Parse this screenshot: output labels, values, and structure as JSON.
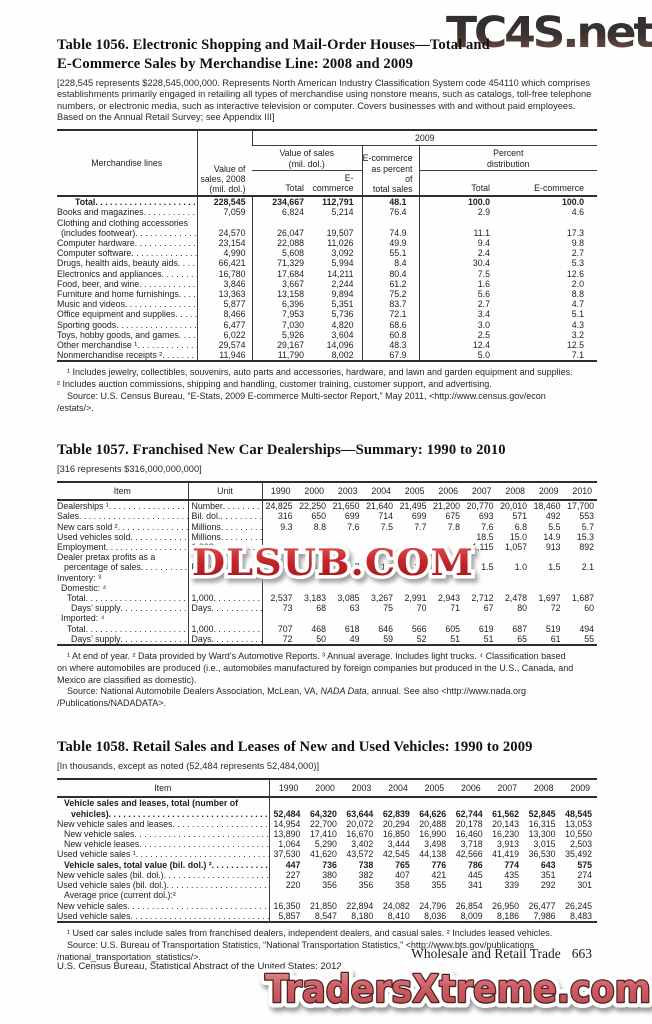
{
  "watermarks": {
    "top": "TC4S.net",
    "middle": "DLSUB.COM",
    "bottom": "TradersXtreme.com"
  },
  "page": {
    "footer_left": "U.S. Census Bureau, Statistical Abstract of the United States: 2012",
    "running_head": "Wholesale and Retail Trade",
    "page_number": "663"
  },
  "table1056": {
    "title_line1": "Table 1056. Electronic Shopping and Mail-Order Houses—Total and",
    "title_line2": "E-Commerce Sales by Merchandise Line: 2008 and 2009",
    "note": "[228,545 represents $228,545,000,000. Represents North American Industry Classification System code 454110 which comprises establishments primarily engaged in retailing all types of merchandise using nonstore means, such as catalogs, toll-free telephone numbers, or electronic media, such as interactive television or computer. Covers businesses with and without paid employees. Based on the Annual Retail Survey; see Appendix III]",
    "header": {
      "stub": "Merchandise lines",
      "col_2008_line1": "Value of",
      "col_2008_line2": "sales, 2008",
      "col_2008_line3": "(mil. dol.)",
      "group_2009": "2009",
      "vos_line1": "Value of sales",
      "vos_line2": "(mil. dol.)",
      "ecp_line1": "E-commerce",
      "ecp_line2": "as percent of",
      "ecp_line3": "total sales",
      "pd_line1": "Percent",
      "pd_line2": "distribution",
      "sub_total": "Total",
      "sub_ecommerce": "E-commerce"
    },
    "rows": [
      {
        "label": "Total",
        "bold": true,
        "indent": 5,
        "values": [
          "228,545",
          "234,667",
          "112,791",
          "48.1",
          "100.0",
          "100.0"
        ]
      },
      {
        "label": "Books and magazines",
        "values": [
          "7,059",
          "6,824",
          "5,214",
          "76.4",
          "2.9",
          "4.6"
        ]
      },
      {
        "label": "Clothing and clothing accessories",
        "values": null
      },
      {
        "label": "(includes footwear)",
        "indent": 1,
        "values": [
          "24,570",
          "26,047",
          "19,507",
          "74.9",
          "11.1",
          "17.3"
        ]
      },
      {
        "label": "Computer hardware",
        "values": [
          "23,154",
          "22,088",
          "11,026",
          "49.9",
          "9.4",
          "9.8"
        ]
      },
      {
        "label": "Computer software",
        "values": [
          "4,990",
          "5,608",
          "3,092",
          "55.1",
          "2.4",
          "2.7"
        ]
      },
      {
        "label": "Drugs, health aids, beauty aids",
        "values": [
          "66,421",
          "71,329",
          "5,994",
          "8.4",
          "30.4",
          "5.3"
        ]
      },
      {
        "label": "Electronics and appliances",
        "values": [
          "16,780",
          "17,684",
          "14,211",
          "80.4",
          "7.5",
          "12.6"
        ]
      },
      {
        "label": "Food, beer, and wine",
        "values": [
          "3,846",
          "3,667",
          "2,244",
          "61.2",
          "1.6",
          "2.0"
        ]
      },
      {
        "label": "Furniture and home furnishings",
        "values": [
          "13,363",
          "13,158",
          "9,894",
          "75.2",
          "5.6",
          "8.8"
        ]
      },
      {
        "label": "Music and videos",
        "values": [
          "5,877",
          "6,396",
          "5,351",
          "83.7",
          "2.7",
          "4.7"
        ]
      },
      {
        "label": "Office equipment and supplies",
        "values": [
          "8,466",
          "7,953",
          "5,736",
          "72.1",
          "3.4",
          "5.1"
        ]
      },
      {
        "label": "Sporting goods",
        "values": [
          "6,477",
          "7,030",
          "4,820",
          "68.6",
          "3.0",
          "4.3"
        ]
      },
      {
        "label": "Toys, hobby goods, and games",
        "values": [
          "6,022",
          "5,926",
          "3,604",
          "60.8",
          "2.5",
          "3.2"
        ]
      },
      {
        "label": "Other merchandise ¹",
        "values": [
          "29,574",
          "29,167",
          "14,096",
          "48.3",
          "12.4",
          "12.5"
        ]
      },
      {
        "label": "Nonmerchandise receipts ²",
        "values": [
          "11,946",
          "11,790",
          "8,002",
          "67.9",
          "5.0",
          "7.1"
        ]
      }
    ],
    "footnote1": "¹ Includes jewelry, collectibles, souvenirs, auto parts and accessories, hardware, and lawn and garden equipment and supplies.",
    "footnote2": "² Includes auction commissions, shipping and handling, customer training, customer support, and advertising.",
    "source_line1": "Source: U.S. Census Bureau, “E-Stats, 2009 E-commerce Multi-sector Report,” May 2011, <http://www.census.gov/econ",
    "source_line2": "/estats/>."
  },
  "table1057": {
    "title": "Table 1057. Franchised New Car Dealerships—Summary: 1990 to 2010",
    "note": "[316 represents $316,000,000,000]",
    "header_item": "Item",
    "header_unit": "Unit",
    "years": [
      "1990",
      "2000",
      "2003",
      "2004",
      "2005",
      "2006",
      "2007",
      "2008",
      "2009",
      "2010"
    ],
    "rows": [
      {
        "label": "Dealerships ¹",
        "unit": "Number",
        "values": [
          "24,825",
          "22,250",
          "21,650",
          "21,640",
          "21,495",
          "21,200",
          "20,770",
          "20,010",
          "18,460",
          "17,700"
        ]
      },
      {
        "label": "Sales",
        "unit": "Bil. dol.",
        "values": [
          "316",
          "650",
          "699",
          "714",
          "699",
          "675",
          "693",
          "571",
          "492",
          "553"
        ]
      },
      {
        "label": "New cars sold ²",
        "unit": "Millions",
        "values": [
          "9.3",
          "8.8",
          "7.6",
          "7.5",
          "7.7",
          "7.8",
          "7.6",
          "6.8",
          "5.5",
          "5.7"
        ]
      },
      {
        "label": "Used vehicles sold",
        "unit": "Millions",
        "values": [
          "",
          "",
          "",
          "",
          "",
          "",
          "18.5",
          "15.0",
          "14.9",
          "15.3"
        ]
      },
      {
        "label": "Employment",
        "unit": "1,000",
        "values": [
          "",
          "",
          "",
          "",
          "",
          "",
          "1,115",
          "1,057",
          "913",
          "892"
        ]
      },
      {
        "label": "Dealer pretax profits as a",
        "values": null
      },
      {
        "label": "percentage of sales",
        "indent": 2,
        "unit": "Percent",
        "values": [
          "1.0",
          "1.6",
          "1.7",
          "1.7",
          "1.6",
          "1.5",
          "1.5",
          "1.0",
          "1.5",
          "2.1"
        ]
      },
      {
        "label": "Inventory: ³",
        "values": null
      },
      {
        "label": "Domestic: ⁴",
        "indent": 1,
        "values": null
      },
      {
        "label": "Total",
        "indent": 3,
        "unit": "1,000",
        "values": [
          "2,537",
          "3,183",
          "3,085",
          "3,267",
          "2,991",
          "2,943",
          "2,712",
          "2,478",
          "1,697",
          "1,687"
        ]
      },
      {
        "label": "Days’ supply",
        "indent": 4,
        "unit": "Days",
        "values": [
          "73",
          "68",
          "63",
          "75",
          "70",
          "71",
          "67",
          "80",
          "72",
          "60"
        ]
      },
      {
        "label": "Imported: ⁴",
        "indent": 1,
        "values": null
      },
      {
        "label": "Total",
        "indent": 3,
        "unit": "1,000",
        "values": [
          "707",
          "468",
          "618",
          "646",
          "566",
          "605",
          "619",
          "687",
          "519",
          "494"
        ]
      },
      {
        "label": "Days’ supply",
        "indent": 4,
        "unit": "Days",
        "values": [
          "72",
          "50",
          "49",
          "59",
          "52",
          "51",
          "51",
          "65",
          "61",
          "55"
        ]
      }
    ],
    "fn_line1": "¹ At end of year. ² Data provided by Ward’s Automotive Reports. ³ Annual average. Includes light trucks. ⁴ Classification based",
    "fn_line2": "on where automobiles are produced (i.e., automobiles manufactured by foreign companies but produced in the U.S., Canada, and",
    "fn_line3": "Mexico are classified as domestic).",
    "source_pre": "Source: National Automobile Dealers Association, McLean, VA, ",
    "source_italic": "NADA Data",
    "source_post": ", annual. See also <http://www.nada.org",
    "source_line2": "/Publications/NADADATA>."
  },
  "table1058": {
    "title": "Table 1058. Retail Sales and Leases of New and Used Vehicles: 1990 to 2009",
    "note": "[In thousands, except as noted (52,484 represents 52,484,000)]",
    "header_item": "Item",
    "years": [
      "1990",
      "2000",
      "2003",
      "2004",
      "2005",
      "2006",
      "2007",
      "2008",
      "2009"
    ],
    "rows": [
      {
        "label": "Vehicle sales and leases, total (number of",
        "bold": true,
        "indent": 2,
        "values": null
      },
      {
        "label": "vehicles)",
        "bold": true,
        "indent": 4,
        "values": [
          "52,484",
          "64,320",
          "63,644",
          "62,839",
          "64,626",
          "62,744",
          "61,562",
          "52,845",
          "48,545"
        ]
      },
      {
        "label": "New vehicle sales and leases",
        "values": [
          "14,954",
          "22,700",
          "20,072",
          "20,294",
          "20,488",
          "20,178",
          "20,143",
          "16,315",
          "13,053"
        ]
      },
      {
        "label": "New vehicle sales",
        "indent": 2,
        "values": [
          "13,890",
          "17,410",
          "16,670",
          "16,850",
          "16,990",
          "16,460",
          "16,230",
          "13,300",
          "10,550"
        ]
      },
      {
        "label": "New vehicle leases",
        "indent": 2,
        "values": [
          "1,064",
          "5,290",
          "3,402",
          "3,444",
          "3,498",
          "3,718",
          "3,913",
          "3,015",
          "2,503"
        ]
      },
      {
        "label": "Used vehicle sales ¹",
        "values": [
          "37,530",
          "41,620",
          "43,572",
          "42,545",
          "44,138",
          "42,566",
          "41,419",
          "36,530",
          "35,492"
        ]
      },
      {
        "label": "Vehicle sales, total value (bil. dol.) ²",
        "bold": true,
        "indent": 2,
        "values": [
          "447",
          "736",
          "738",
          "765",
          "776",
          "786",
          "774",
          "643",
          "575"
        ]
      },
      {
        "label": "New vehicle sales (bil. dol.)",
        "values": [
          "227",
          "380",
          "382",
          "407",
          "421",
          "445",
          "435",
          "351",
          "274"
        ]
      },
      {
        "label": "Used vehicle sales (bil. dol.)",
        "values": [
          "220",
          "356",
          "356",
          "358",
          "355",
          "341",
          "339",
          "292",
          "301"
        ]
      },
      {
        "label": "Average price (current dol.):²",
        "indent": 2,
        "values": null
      },
      {
        "label": "New vehicle sales",
        "values": [
          "16,350",
          "21,850",
          "22,894",
          "24,082",
          "24,796",
          "26,854",
          "26,950",
          "26,477",
          "26,245"
        ]
      },
      {
        "label": "Used vehicle sales",
        "values": [
          "5,857",
          "8,547",
          "8,180",
          "8,410",
          "8,036",
          "8,009",
          "8,186",
          "7,986",
          "8,483"
        ]
      }
    ],
    "footnote1": "¹ Used car sales include sales from franchised dealers, independent dealers, and casual sales. ² Includes leased vehicles.",
    "source_line1": "Source: U.S. Bureau of Transportation Statistics, “National Transportation Statistics,” <http://www.bts.gov/publications",
    "source_line2": "/national_transportation_statistics/>."
  }
}
